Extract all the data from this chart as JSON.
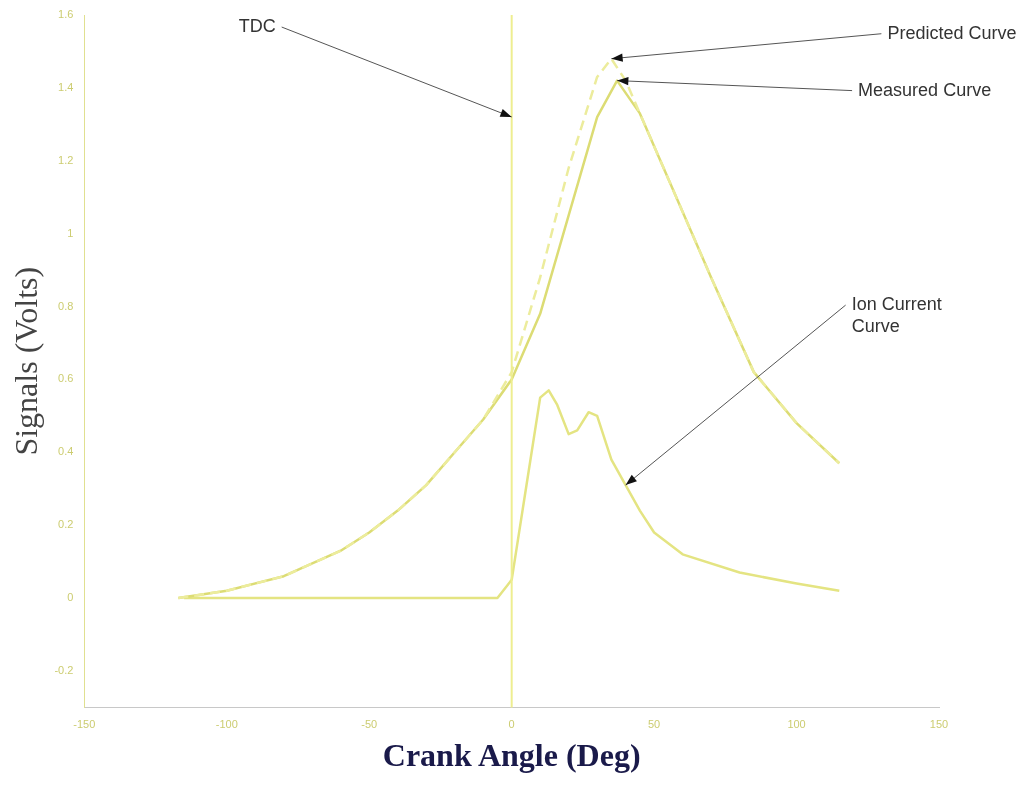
{
  "chart_data": {
    "type": "line",
    "xlabel": "Crank Angle (Deg)",
    "ylabel": "Signals (Volts)",
    "xlim": [
      -150,
      150
    ],
    "xticks": [
      -150,
      -100,
      -50,
      0,
      50,
      100,
      150
    ],
    "ylim": [
      -0.3,
      1.6
    ],
    "yticks": [
      -0.2,
      0,
      0.2,
      0.4,
      0.6,
      0.8,
      1,
      1.2,
      1.4,
      1.6
    ],
    "grid": false,
    "legend": false,
    "marker": "none",
    "series": [
      {
        "color": "#ecec9c",
        "line_style": "dashed",
        "x": [
          -117,
          -100,
          -80,
          -60,
          -50,
          -40,
          -30,
          -20,
          -10,
          0,
          10,
          20,
          30,
          35,
          40,
          45,
          55,
          70,
          85,
          100,
          115
        ],
        "values": [
          0,
          0.02,
          0.06,
          0.13,
          0.18,
          0.24,
          0.31,
          0.4,
          0.49,
          0.62,
          0.88,
          1.18,
          1.43,
          1.48,
          1.42,
          1.33,
          1.15,
          0.88,
          0.62,
          0.48,
          0.37
        ]
      },
      {
        "color": "#dcdc74",
        "line_style": "solid",
        "x": [
          -117,
          -100,
          -80,
          -60,
          -50,
          -40,
          -30,
          -20,
          -10,
          0,
          10,
          20,
          30,
          37,
          45,
          55,
          70,
          85,
          100,
          115
        ],
        "values": [
          0,
          0.02,
          0.06,
          0.13,
          0.18,
          0.24,
          0.31,
          0.4,
          0.49,
          0.6,
          0.78,
          1.05,
          1.32,
          1.42,
          1.33,
          1.15,
          0.88,
          0.62,
          0.48,
          0.37
        ]
      },
      {
        "color": "#e4e482",
        "line_style": "solid",
        "x": [
          -115,
          -60,
          -5,
          0,
          5,
          10,
          13,
          16,
          20,
          23,
          27,
          30,
          35,
          40,
          45,
          50,
          60,
          80,
          100,
          115
        ],
        "values": [
          0,
          0,
          0,
          0.05,
          0.3,
          0.55,
          0.57,
          0.53,
          0.45,
          0.46,
          0.51,
          0.5,
          0.38,
          0.31,
          0.24,
          0.18,
          0.12,
          0.07,
          0.04,
          0.02
        ]
      }
    ],
    "ref_lines": [
      {
        "axis": "x",
        "value": 0,
        "color": "#eeee90",
        "line_style": "solid"
      }
    ],
    "annotations": [
      {
        "text": "TDC",
        "x": 0,
        "y": 1.32
      },
      {
        "text": "Predicted Curve",
        "x": 35,
        "y": 1.48
      },
      {
        "text": "Measured Curve",
        "x": 37,
        "y": 1.42
      },
      {
        "text": "Ion Current\nCurve",
        "x": 40,
        "y": 0.31
      }
    ]
  }
}
